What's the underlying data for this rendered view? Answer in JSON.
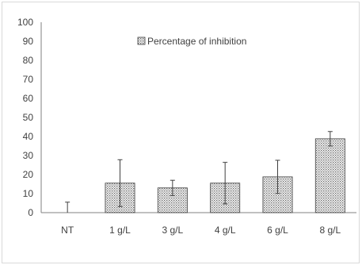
{
  "chart_data": {
    "type": "bar",
    "categories": [
      "NT",
      "1 g/L",
      "3 g/L",
      "4 g/L",
      "6 g/L",
      "8 g/L"
    ],
    "series": [
      {
        "name": "Percentage of inhibition",
        "values": [
          0,
          15.5,
          13,
          15.5,
          18.8,
          38.8
        ],
        "error": [
          5.5,
          12.3,
          4.0,
          10.9,
          8.7,
          3.8
        ]
      }
    ],
    "title": "",
    "xlabel": "",
    "ylabel": "",
    "ylim": [
      0,
      100
    ],
    "yticks": [
      0,
      10,
      20,
      30,
      40,
      50,
      60,
      70,
      80,
      90,
      100
    ],
    "ytick_labels": [
      "0",
      "10",
      "20",
      "30",
      "40",
      "50",
      "60",
      "70",
      "80",
      "90",
      "100"
    ],
    "grid": false,
    "legend": {
      "placement": "top-center",
      "label": "Percentage of inhibition"
    },
    "colors": {
      "bar_fill": "#d9d9d9",
      "bar_border": "#404040",
      "axis": "#808080",
      "error_bar": "#404040"
    }
  }
}
